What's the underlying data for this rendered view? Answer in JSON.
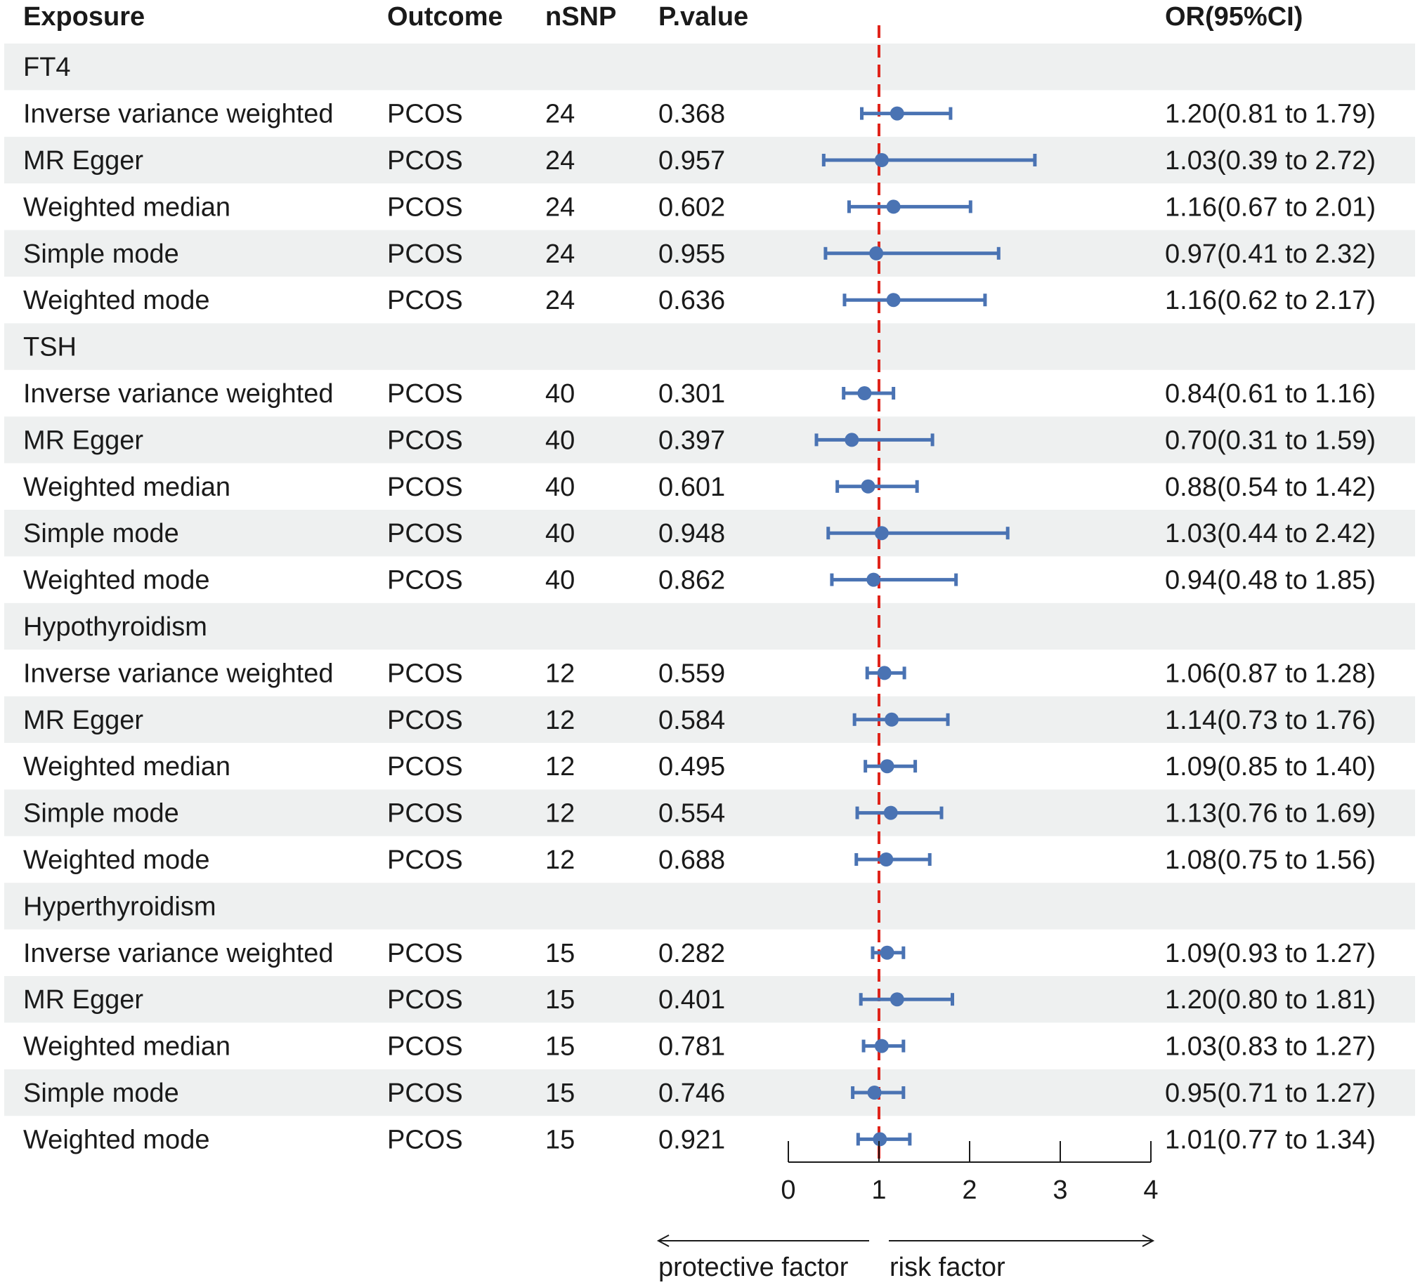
{
  "colors": {
    "stripe": "#eef0f0",
    "marker": "#4a73b3",
    "refline": "#e0241b",
    "text": "#1a1a1a"
  },
  "headers": {
    "exposure": "Exposure",
    "outcome": "Outcome",
    "nsnp": "nSNP",
    "pvalue": "P.value",
    "or": "OR(95%CI)"
  },
  "chart_data": {
    "type": "forest",
    "title": "",
    "xaxis": {
      "ticks": [
        0,
        1,
        2,
        3,
        4
      ],
      "ticklabels": [
        "0",
        "1",
        "2",
        "3",
        "4"
      ],
      "range": [
        0,
        4
      ],
      "reference_value": 1
    },
    "annotations": {
      "left_arrow": "protective factor",
      "right_arrow": "risk factor"
    },
    "groups": [
      {
        "name": "FT4",
        "rows": [
          {
            "method": "Inverse variance weighted",
            "outcome": "PCOS",
            "nsnp": "24",
            "pvalue": "0.368",
            "or": 1.2,
            "lo": 0.81,
            "hi": 1.79,
            "or_text": "1.20(0.81 to 1.79)"
          },
          {
            "method": "MR Egger",
            "outcome": "PCOS",
            "nsnp": "24",
            "pvalue": "0.957",
            "or": 1.03,
            "lo": 0.39,
            "hi": 2.72,
            "or_text": "1.03(0.39 to 2.72)"
          },
          {
            "method": "Weighted median",
            "outcome": "PCOS",
            "nsnp": "24",
            "pvalue": "0.602",
            "or": 1.16,
            "lo": 0.67,
            "hi": 2.01,
            "or_text": "1.16(0.67 to 2.01)"
          },
          {
            "method": "Simple mode",
            "outcome": "PCOS",
            "nsnp": "24",
            "pvalue": "0.955",
            "or": 0.97,
            "lo": 0.41,
            "hi": 2.32,
            "or_text": "0.97(0.41 to 2.32)"
          },
          {
            "method": "Weighted mode",
            "outcome": "PCOS",
            "nsnp": "24",
            "pvalue": "0.636",
            "or": 1.16,
            "lo": 0.62,
            "hi": 2.17,
            "or_text": "1.16(0.62 to 2.17)"
          }
        ]
      },
      {
        "name": "TSH",
        "rows": [
          {
            "method": "Inverse variance weighted",
            "outcome": "PCOS",
            "nsnp": "40",
            "pvalue": "0.301",
            "or": 0.84,
            "lo": 0.61,
            "hi": 1.16,
            "or_text": "0.84(0.61 to 1.16)"
          },
          {
            "method": "MR Egger",
            "outcome": "PCOS",
            "nsnp": "40",
            "pvalue": "0.397",
            "or": 0.7,
            "lo": 0.31,
            "hi": 1.59,
            "or_text": "0.70(0.31 to 1.59)"
          },
          {
            "method": "Weighted median",
            "outcome": "PCOS",
            "nsnp": "40",
            "pvalue": "0.601",
            "or": 0.88,
            "lo": 0.54,
            "hi": 1.42,
            "or_text": "0.88(0.54 to 1.42)"
          },
          {
            "method": "Simple mode",
            "outcome": "PCOS",
            "nsnp": "40",
            "pvalue": "0.948",
            "or": 1.03,
            "lo": 0.44,
            "hi": 2.42,
            "or_text": "1.03(0.44 to 2.42)"
          },
          {
            "method": "Weighted mode",
            "outcome": "PCOS",
            "nsnp": "40",
            "pvalue": "0.862",
            "or": 0.94,
            "lo": 0.48,
            "hi": 1.85,
            "or_text": "0.94(0.48 to 1.85)"
          }
        ]
      },
      {
        "name": "Hypothyroidism",
        "rows": [
          {
            "method": "Inverse variance weighted",
            "outcome": "PCOS",
            "nsnp": "12",
            "pvalue": "0.559",
            "or": 1.06,
            "lo": 0.87,
            "hi": 1.28,
            "or_text": "1.06(0.87 to 1.28)"
          },
          {
            "method": "MR Egger",
            "outcome": "PCOS",
            "nsnp": "12",
            "pvalue": "0.584",
            "or": 1.14,
            "lo": 0.73,
            "hi": 1.76,
            "or_text": "1.14(0.73 to 1.76)"
          },
          {
            "method": "Weighted median",
            "outcome": "PCOS",
            "nsnp": "12",
            "pvalue": "0.495",
            "or": 1.09,
            "lo": 0.85,
            "hi": 1.4,
            "or_text": "1.09(0.85 to 1.40)"
          },
          {
            "method": "Simple mode",
            "outcome": "PCOS",
            "nsnp": "12",
            "pvalue": "0.554",
            "or": 1.13,
            "lo": 0.76,
            "hi": 1.69,
            "or_text": "1.13(0.76 to 1.69)"
          },
          {
            "method": "Weighted mode",
            "outcome": "PCOS",
            "nsnp": "12",
            "pvalue": "0.688",
            "or": 1.08,
            "lo": 0.75,
            "hi": 1.56,
            "or_text": "1.08(0.75 to 1.56)"
          }
        ]
      },
      {
        "name": "Hyperthyroidism",
        "rows": [
          {
            "method": "Inverse variance weighted",
            "outcome": "PCOS",
            "nsnp": "15",
            "pvalue": "0.282",
            "or": 1.09,
            "lo": 0.93,
            "hi": 1.27,
            "or_text": "1.09(0.93 to 1.27)"
          },
          {
            "method": "MR Egger",
            "outcome": "PCOS",
            "nsnp": "15",
            "pvalue": "0.401",
            "or": 1.2,
            "lo": 0.8,
            "hi": 1.81,
            "or_text": "1.20(0.80 to 1.81)"
          },
          {
            "method": "Weighted median",
            "outcome": "PCOS",
            "nsnp": "15",
            "pvalue": "0.781",
            "or": 1.03,
            "lo": 0.83,
            "hi": 1.27,
            "or_text": "1.03(0.83 to 1.27)"
          },
          {
            "method": "Simple mode",
            "outcome": "PCOS",
            "nsnp": "15",
            "pvalue": "0.746",
            "or": 0.95,
            "lo": 0.71,
            "hi": 1.27,
            "or_text": "0.95(0.71 to 1.27)"
          },
          {
            "method": "Weighted mode",
            "outcome": "PCOS",
            "nsnp": "15",
            "pvalue": "0.921",
            "or": 1.01,
            "lo": 0.77,
            "hi": 1.34,
            "or_text": "1.01(0.77 to 1.34)"
          }
        ]
      }
    ]
  }
}
